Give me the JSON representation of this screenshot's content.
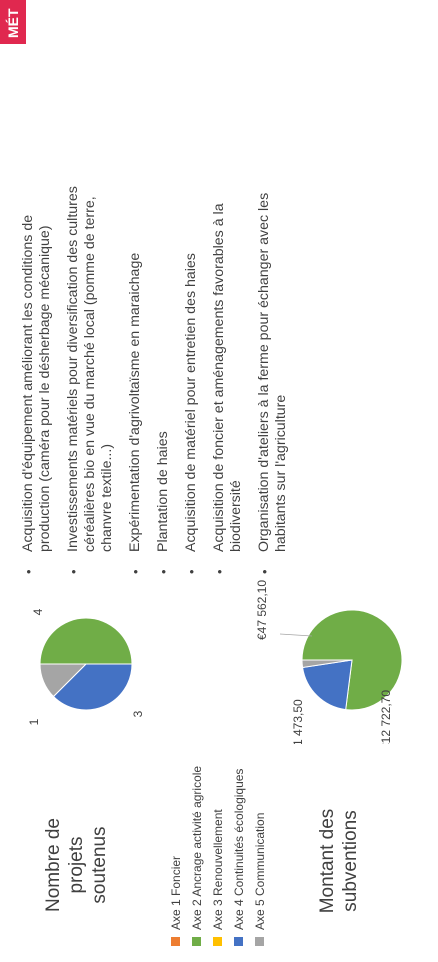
{
  "corner_tag": "MÉT",
  "count_block": {
    "label_line1": "Nombre de projets",
    "label_line2": "soutenus"
  },
  "amount_block": {
    "label_line1": "Montant des",
    "label_line2": "subventions"
  },
  "legend": [
    {
      "label": "Axe 1  Foncier",
      "color": "#ed7d31"
    },
    {
      "label": "Axe 2  Ancrage activité agricole",
      "color": "#70ad47"
    },
    {
      "label": "Axe 3  Renouvellement",
      "color": "#ffc000"
    },
    {
      "label": "Axe 4  Continuités écologiques",
      "color": "#4472c4"
    },
    {
      "label": "Axe 5  Communication",
      "color": "#a5a5a5"
    }
  ],
  "chart_data": [
    {
      "type": "pie",
      "title": "Nombre de projets soutenus",
      "categories": [
        "Axe 2  Ancrage activité agricole",
        "Axe 4  Continuités écologiques",
        "Axe 5  Communication"
      ],
      "values": [
        4,
        3,
        1
      ],
      "data_labels": [
        "4",
        "3",
        "1"
      ],
      "colors": [
        "#70ad47",
        "#4472c4",
        "#a5a5a5"
      ]
    },
    {
      "type": "pie",
      "title": "Montant des subventions",
      "categories": [
        "Axe 2  Ancrage activité agricole",
        "Axe 4  Continuités écologiques",
        "Axe 5  Communication"
      ],
      "values": [
        47562.1,
        12722.7,
        1473.5
      ],
      "data_labels": [
        "€47 562,10",
        "€12 722,70",
        "€1 473,50"
      ],
      "colors": [
        "#70ad47",
        "#4472c4",
        "#a5a5a5"
      ]
    }
  ],
  "bullets": [
    {
      "line1": "Acquisition d'équipement améliorant les conditions de",
      "line2": "production (caméra pour le désherbage mécanique)",
      "line3": ""
    },
    {
      "line1": "Investissements matériels pour diversification des cultures",
      "line2": "céréalières bio en vue du marché local (pomme de terre,",
      "line3": "chanvre textile...)"
    },
    {
      "line1": "Expérimentation d'agrivoltaïsme en maraichage",
      "line2": "",
      "line3": ""
    },
    {
      "line1": "Plantation de haies",
      "line2": "",
      "line3": ""
    },
    {
      "line1": "Acquisition de matériel pour entretien des haies",
      "line2": "",
      "line3": ""
    },
    {
      "line1": "Acquisition de foncier et aménagements favorables à la",
      "line2": "biodiversité",
      "line3": ""
    },
    {
      "line1": "Organisation d'ateliers à la ferme pour échanger avec les",
      "line2": "habitants sur l'agriculture",
      "line3": ""
    }
  ]
}
